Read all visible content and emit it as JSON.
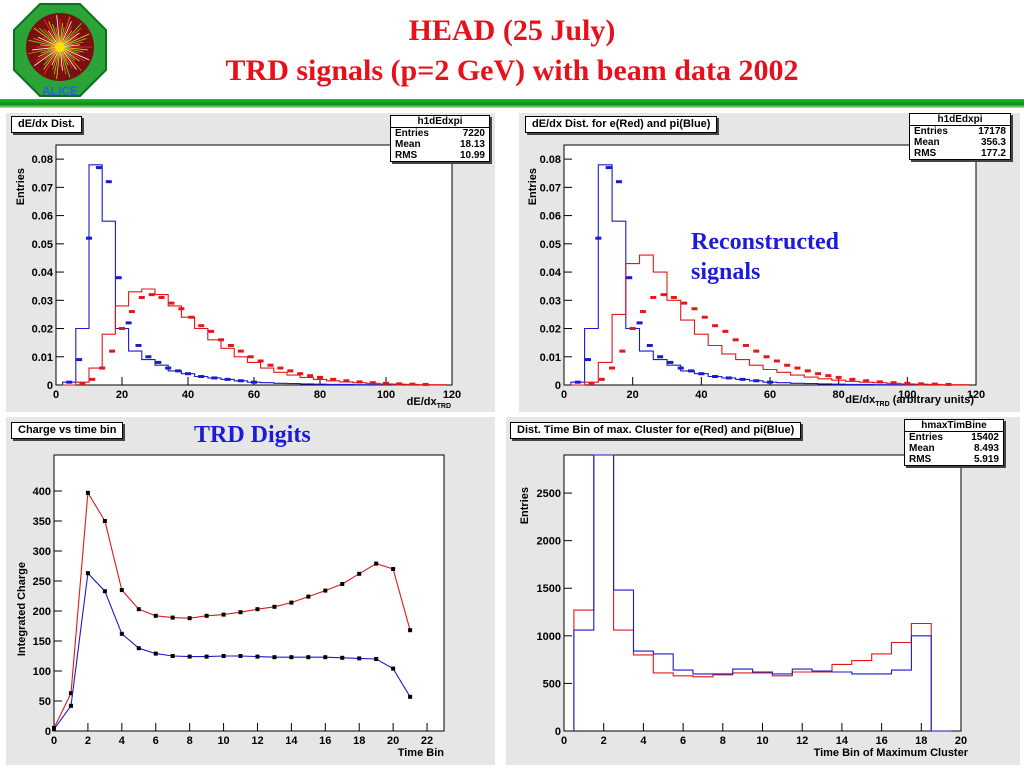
{
  "header": {
    "line1": "HEAD (25 July)",
    "line2": "TRD signals (p=2 GeV) with beam data 2002",
    "logo_text": "ALICE"
  },
  "colors": {
    "red": "#e01818",
    "blue": "#1a1ad0",
    "panel_bg": "#e6e6e6",
    "title_red": "#e8101a",
    "green_bar": "#18c028"
  },
  "panels": {
    "p1": {
      "title": "dE/dx  Dist.",
      "stats": {
        "name": "h1dEdxpi",
        "rows": [
          [
            "Entries",
            "7220"
          ],
          [
            "Mean",
            "18.13"
          ],
          [
            "RMS",
            "10.99"
          ]
        ]
      }
    },
    "p2": {
      "title": "dE/dx  Dist. for e(Red) and pi(Blue)",
      "stats": {
        "name": "h1dEdxpi",
        "rows": [
          [
            "Entries",
            "17178"
          ],
          [
            "Mean",
            "356.3"
          ],
          [
            "RMS",
            "177.2"
          ]
        ]
      },
      "annotation": [
        "Reconstructed",
        "signals"
      ]
    },
    "p3": {
      "title": "Charge vs time bin",
      "annotation": "TRD Digits"
    },
    "p4": {
      "title": "Dist. Time Bin of max. Cluster for e(Red) and pi(Blue)",
      "stats": {
        "name": "hmaxTimBine",
        "rows": [
          [
            "Entries",
            "15402"
          ],
          [
            "Mean",
            "8.493"
          ],
          [
            "RMS",
            "5.919"
          ]
        ]
      }
    }
  },
  "chart_data": [
    {
      "type": "line",
      "ylabel": "Entries",
      "xlabel": "dE/dx",
      "xlabel_sub": "TRD",
      "xlim": [
        0,
        120
      ],
      "ylim": [
        0,
        0.085
      ],
      "xticks": [
        0,
        20,
        40,
        60,
        80,
        100,
        120
      ],
      "yticks": [
        0,
        0.01,
        0.02,
        0.03,
        0.04,
        0.05,
        0.06,
        0.07,
        0.08
      ],
      "ytick_labels": [
        "0",
        "0.01",
        "0.02",
        "0.03",
        "0.04",
        "0.05",
        "0.06",
        "0.07",
        "0.08"
      ],
      "x": [
        4,
        8,
        12,
        16,
        20,
        24,
        28,
        32,
        36,
        40,
        44,
        48,
        52,
        56,
        60,
        64,
        68,
        72,
        76,
        80,
        84,
        88,
        92,
        96,
        100,
        104,
        108,
        112,
        116
      ],
      "series": [
        {
          "color": "blue",
          "histogram": true,
          "values": [
            0.001,
            0.02,
            0.078,
            0.058,
            0.02,
            0.012,
            0.009,
            0.007,
            0.005,
            0.004,
            0.003,
            0.0025,
            0.002,
            0.0015,
            0.001,
            0.0008,
            0.0006,
            0.0005,
            0.0004,
            0.0003,
            0.0002,
            0.0002,
            0.0001,
            0.0001,
            0.0001,
            0,
            0,
            0,
            0
          ]
        },
        {
          "color": "red",
          "histogram": true,
          "values": [
            0,
            0.001,
            0.006,
            0.018,
            0.028,
            0.033,
            0.034,
            0.032,
            0.028,
            0.024,
            0.02,
            0.016,
            0.013,
            0.01,
            0.008,
            0.006,
            0.0045,
            0.0035,
            0.0027,
            0.002,
            0.0015,
            0.0011,
            0.0008,
            0.0006,
            0.0004,
            0.0003,
            0.0002,
            0.0001,
            0.0001
          ]
        },
        {
          "color": "blue",
          "markers": true,
          "x": [
            4,
            7,
            10,
            13,
            16,
            19,
            22,
            25,
            28,
            31,
            34,
            37,
            40,
            44,
            48,
            52,
            56,
            60
          ],
          "values": [
            0.001,
            0.009,
            0.052,
            0.077,
            0.072,
            0.038,
            0.022,
            0.014,
            0.01,
            0.008,
            0.006,
            0.005,
            0.004,
            0.003,
            0.0025,
            0.002,
            0.0015,
            0.001
          ]
        },
        {
          "color": "red",
          "markers": true,
          "x": [
            8,
            11,
            14,
            17,
            20,
            23,
            26,
            29,
            32,
            35,
            38,
            41,
            44,
            47,
            50,
            53,
            56,
            59,
            62,
            65,
            68,
            71,
            74,
            77,
            80,
            84,
            88,
            92,
            96,
            100,
            104,
            108,
            112
          ],
          "values": [
            0.0005,
            0.002,
            0.006,
            0.012,
            0.02,
            0.026,
            0.031,
            0.032,
            0.031,
            0.029,
            0.027,
            0.024,
            0.021,
            0.019,
            0.016,
            0.014,
            0.012,
            0.01,
            0.0085,
            0.007,
            0.006,
            0.005,
            0.004,
            0.0033,
            0.0027,
            0.002,
            0.0015,
            0.0011,
            0.0008,
            0.0006,
            0.0004,
            0.0003,
            0.0002
          ]
        }
      ]
    },
    {
      "type": "line",
      "ylabel": "Entries",
      "xlabel": "dE/dx",
      "xlabel_sub": "TRD",
      "xlabel_tail": " (arbitrary units)",
      "xlim": [
        0,
        120
      ],
      "ylim": [
        0,
        0.085
      ],
      "xticks": [
        0,
        20,
        40,
        60,
        80,
        100,
        120
      ],
      "yticks": [
        0,
        0.01,
        0.02,
        0.03,
        0.04,
        0.05,
        0.06,
        0.07,
        0.08
      ],
      "ytick_labels": [
        "0",
        "0.01",
        "0.02",
        "0.03",
        "0.04",
        "0.05",
        "0.06",
        "0.07",
        "0.08"
      ],
      "x": [
        4,
        8,
        12,
        16,
        20,
        24,
        28,
        32,
        36,
        40,
        44,
        48,
        52,
        56,
        60,
        64,
        68,
        72,
        76,
        80,
        84,
        88,
        92,
        96,
        100,
        104,
        108,
        112,
        116
      ],
      "series": [
        {
          "color": "blue",
          "histogram": true,
          "values": [
            0.001,
            0.02,
            0.078,
            0.058,
            0.02,
            0.012,
            0.009,
            0.007,
            0.005,
            0.004,
            0.003,
            0.0025,
            0.002,
            0.0015,
            0.001,
            0.0008,
            0.0006,
            0.0005,
            0.0004,
            0.0003,
            0.0002,
            0.0002,
            0.0001,
            0.0001,
            0.0001,
            0,
            0,
            0,
            0
          ]
        },
        {
          "color": "red",
          "histogram": true,
          "values": [
            0,
            0.001,
            0.008,
            0.025,
            0.043,
            0.046,
            0.04,
            0.03,
            0.023,
            0.018,
            0.014,
            0.011,
            0.009,
            0.007,
            0.0055,
            0.0045,
            0.0035,
            0.0028,
            0.0022,
            0.0017,
            0.0013,
            0.001,
            0.0008,
            0.0006,
            0.0004,
            0.0003,
            0.0002,
            0.0001,
            0.0001
          ]
        },
        {
          "color": "blue",
          "markers": true,
          "x": [
            4,
            7,
            10,
            13,
            16,
            19,
            22,
            25,
            28,
            31,
            34,
            37,
            40,
            44,
            48,
            52,
            56,
            60
          ],
          "values": [
            0.001,
            0.009,
            0.052,
            0.077,
            0.072,
            0.038,
            0.022,
            0.014,
            0.01,
            0.008,
            0.006,
            0.005,
            0.004,
            0.003,
            0.0025,
            0.002,
            0.0015,
            0.001
          ]
        },
        {
          "color": "red",
          "markers": true,
          "x": [
            8,
            11,
            14,
            17,
            20,
            23,
            26,
            29,
            32,
            35,
            38,
            41,
            44,
            47,
            50,
            53,
            56,
            59,
            62,
            65,
            68,
            71,
            74,
            77,
            80,
            84,
            88,
            92,
            96,
            100,
            104,
            108,
            112
          ],
          "values": [
            0.0005,
            0.002,
            0.006,
            0.012,
            0.02,
            0.026,
            0.031,
            0.032,
            0.031,
            0.029,
            0.027,
            0.024,
            0.021,
            0.019,
            0.016,
            0.014,
            0.012,
            0.01,
            0.0085,
            0.007,
            0.006,
            0.005,
            0.004,
            0.0033,
            0.0027,
            0.002,
            0.0015,
            0.0011,
            0.0008,
            0.0006,
            0.0004,
            0.0003,
            0.0002
          ]
        }
      ]
    },
    {
      "type": "line",
      "ylabel": "Integrated Charge",
      "xlabel": "Time Bin",
      "xlim": [
        0,
        23
      ],
      "ylim": [
        0,
        460
      ],
      "xticks": [
        0,
        2,
        4,
        6,
        8,
        10,
        12,
        14,
        16,
        18,
        20,
        22
      ],
      "yticks": [
        0,
        50,
        100,
        150,
        200,
        250,
        300,
        350,
        400
      ],
      "ytick_labels": [
        "0",
        "50",
        "100",
        "150",
        "200",
        "250",
        "300",
        "350",
        "400"
      ],
      "x": [
        0,
        1,
        2,
        3,
        4,
        5,
        6,
        7,
        8,
        9,
        10,
        11,
        12,
        13,
        14,
        15,
        16,
        17,
        18,
        19,
        20,
        21
      ],
      "series": [
        {
          "color": "red",
          "markers": true,
          "values": [
            5,
            63,
            397,
            350,
            235,
            203,
            192,
            189,
            188,
            192,
            194,
            198,
            203,
            207,
            214,
            224,
            234,
            245,
            262,
            279,
            270,
            168
          ]
        },
        {
          "color": "blue",
          "markers": true,
          "values": [
            3,
            42,
            263,
            233,
            162,
            138,
            129,
            125,
            124,
            124,
            125,
            125,
            124,
            123,
            123,
            123,
            123,
            122,
            121,
            120,
            104,
            57
          ]
        }
      ]
    },
    {
      "type": "bar",
      "ylabel": "Entries",
      "xlabel": "Time Bin of Maximum Cluster",
      "xlim": [
        0,
        20
      ],
      "ylim": [
        0,
        2900
      ],
      "xticks": [
        0,
        2,
        4,
        6,
        8,
        10,
        12,
        14,
        16,
        18,
        20
      ],
      "yticks": [
        0,
        500,
        1000,
        1500,
        2000,
        2500
      ],
      "ytick_labels": [
        "0",
        "500",
        "1000",
        "1500",
        "2000",
        "2500"
      ],
      "x": [
        1,
        2,
        3,
        4,
        5,
        6,
        7,
        8,
        9,
        10,
        11,
        12,
        13,
        14,
        15,
        16,
        17,
        18,
        19
      ],
      "series": [
        {
          "color": "red",
          "histogram": true,
          "values": [
            1270,
            2900,
            1060,
            800,
            610,
            580,
            570,
            590,
            610,
            610,
            580,
            620,
            620,
            700,
            740,
            810,
            930,
            1130,
            0
          ]
        },
        {
          "color": "blue",
          "histogram": true,
          "values": [
            1060,
            2900,
            1480,
            840,
            810,
            640,
            600,
            600,
            650,
            620,
            600,
            650,
            630,
            620,
            600,
            600,
            640,
            1000,
            0
          ]
        }
      ]
    }
  ]
}
